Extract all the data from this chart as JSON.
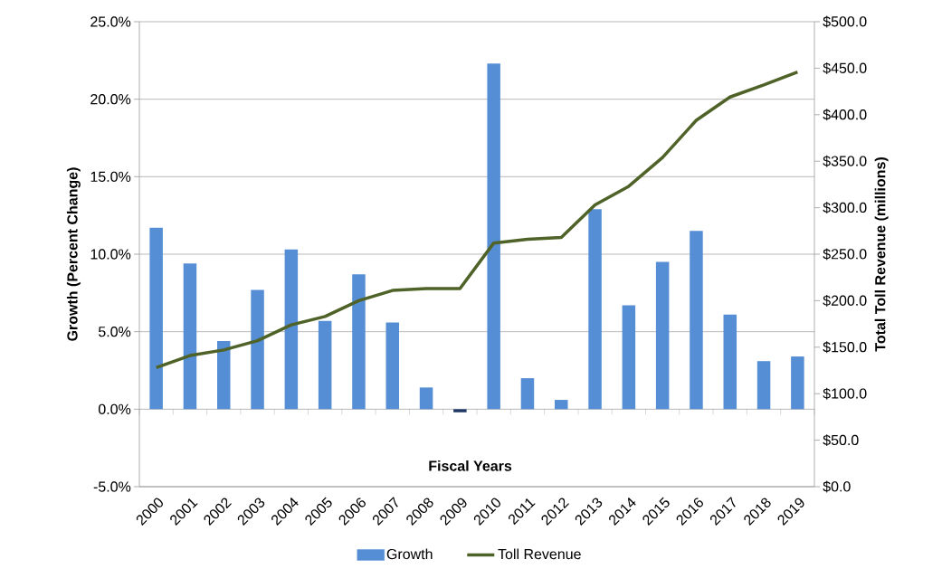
{
  "chart_data": {
    "type": "bar",
    "xlabel": "Fiscal Years",
    "ylabel": "Growth (Percent Change)",
    "y2label": "Total Toll Revenue (millions)",
    "categories": [
      "2000",
      "2001",
      "2002",
      "2003",
      "2004",
      "2005",
      "2006",
      "2007",
      "2008",
      "2009",
      "2010",
      "2011",
      "2012",
      "2013",
      "2014",
      "2015",
      "2016",
      "2017",
      "2018",
      "2019"
    ],
    "series": [
      {
        "name": "Growth",
        "color": "#558ed5",
        "colors": [
          "#558ed5",
          "#558ed5",
          "#558ed5",
          "#558ed5",
          "#558ed5",
          "#558ed5",
          "#558ed5",
          "#558ed5",
          "#558ed5",
          "#1f3864",
          "#558ed5",
          "#558ed5",
          "#558ed5",
          "#558ed5",
          "#558ed5",
          "#558ed5",
          "#558ed5",
          "#558ed5",
          "#558ed5",
          "#558ed5"
        ],
        "values": [
          11.7,
          9.4,
          4.4,
          7.7,
          10.3,
          5.7,
          8.7,
          5.6,
          1.4,
          -0.2,
          22.3,
          2.0,
          0.6,
          12.9,
          6.7,
          9.5,
          11.5,
          6.1,
          3.1,
          3.4
        ]
      },
      {
        "name": "Toll Revenue",
        "type": "line",
        "axis": "y2",
        "color": "#4f6228",
        "values": [
          128,
          141,
          147,
          157,
          174,
          183,
          200,
          211,
          213,
          213,
          262,
          266,
          268,
          303,
          323,
          354,
          394,
          419,
          432,
          446
        ]
      }
    ],
    "ylim": [
      -5,
      25
    ],
    "yticks": [
      {
        "value": -5,
        "label": "-5.0%"
      },
      {
        "value": 0,
        "label": "0.0%"
      },
      {
        "value": 5,
        "label": "5.0%"
      },
      {
        "value": 10,
        "label": "10.0%"
      },
      {
        "value": 15,
        "label": "15.0%"
      },
      {
        "value": 20,
        "label": "20.0%"
      },
      {
        "value": 25,
        "label": "25.0%"
      }
    ],
    "y2lim": [
      0,
      500
    ],
    "y2ticks": [
      {
        "value": 0,
        "label": "$0.0"
      },
      {
        "value": 50,
        "label": "$50.0"
      },
      {
        "value": 100,
        "label": "$100.0"
      },
      {
        "value": 150,
        "label": "$150.0"
      },
      {
        "value": 200,
        "label": "$200.0"
      },
      {
        "value": 250,
        "label": "$250.0"
      },
      {
        "value": 300,
        "label": "$300.0"
      },
      {
        "value": 350,
        "label": "$350.0"
      },
      {
        "value": 400,
        "label": "$400.0"
      },
      {
        "value": 450,
        "label": "$450.0"
      },
      {
        "value": 500,
        "label": "$500.0"
      }
    ],
    "grid": "y",
    "legend": "bottom"
  }
}
